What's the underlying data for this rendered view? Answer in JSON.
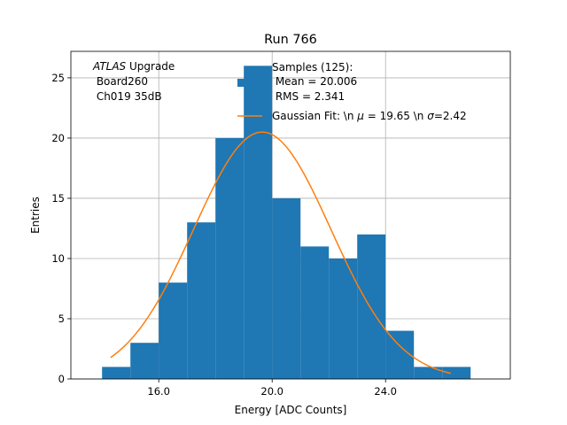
{
  "chart_data": {
    "type": "bar",
    "title": "Run 766",
    "xlabel": "Energy [ADC Counts]",
    "ylabel": "Entries",
    "xlim": [
      12.9,
      28.4
    ],
    "ylim": [
      0,
      27.2
    ],
    "grid": true,
    "x_ticks": [
      {
        "value": 16,
        "label": "16.0"
      },
      {
        "value": 20,
        "label": "20.0"
      },
      {
        "value": 24,
        "label": "24.0"
      }
    ],
    "y_ticks": [
      {
        "value": 0,
        "label": "0"
      },
      {
        "value": 5,
        "label": "5"
      },
      {
        "value": 10,
        "label": "10"
      },
      {
        "value": 15,
        "label": "15"
      },
      {
        "value": 20,
        "label": "20"
      },
      {
        "value": 25,
        "label": "25"
      }
    ],
    "annotation": {
      "italic": "ATLAS",
      "rest": " Upgrade",
      "lines": [
        " Board260",
        " Ch019 35dB"
      ]
    },
    "histogram": {
      "color": "#1f77b4",
      "bins": [
        {
          "x0": 14.0,
          "x1": 15.0,
          "count": 1
        },
        {
          "x0": 15.0,
          "x1": 16.0,
          "count": 3
        },
        {
          "x0": 16.0,
          "x1": 17.0,
          "count": 8
        },
        {
          "x0": 17.0,
          "x1": 18.0,
          "count": 13
        },
        {
          "x0": 18.0,
          "x1": 19.0,
          "count": 20
        },
        {
          "x0": 19.0,
          "x1": 20.0,
          "count": 26
        },
        {
          "x0": 20.0,
          "x1": 21.0,
          "count": 15
        },
        {
          "x0": 21.0,
          "x1": 22.0,
          "count": 11
        },
        {
          "x0": 22.0,
          "x1": 23.0,
          "count": 10
        },
        {
          "x0": 23.0,
          "x1": 24.0,
          "count": 12
        },
        {
          "x0": 24.0,
          "x1": 25.0,
          "count": 4
        },
        {
          "x0": 25.0,
          "x1": 26.0,
          "count": 1
        },
        {
          "x0": 26.0,
          "x1": 27.0,
          "count": 1
        }
      ]
    },
    "fit": {
      "color": "#ff7f0e",
      "mu": 19.65,
      "sigma": 2.42,
      "amplitude": 20.5,
      "x_range": [
        14.3,
        26.3
      ]
    },
    "legend": {
      "placement": "top-right",
      "entries": [
        {
          "name": "samples",
          "lines": [
            "Samples (125):",
            " Mean = 20.006",
            " RMS = 2.341"
          ]
        },
        {
          "name": "fit",
          "pre": "Gaussian Fit: \\n ",
          "mu_sym": "μ",
          "mid": " = 19.65 \\n ",
          "sigma_sym": "σ",
          "post": "=2.42"
        }
      ]
    }
  }
}
